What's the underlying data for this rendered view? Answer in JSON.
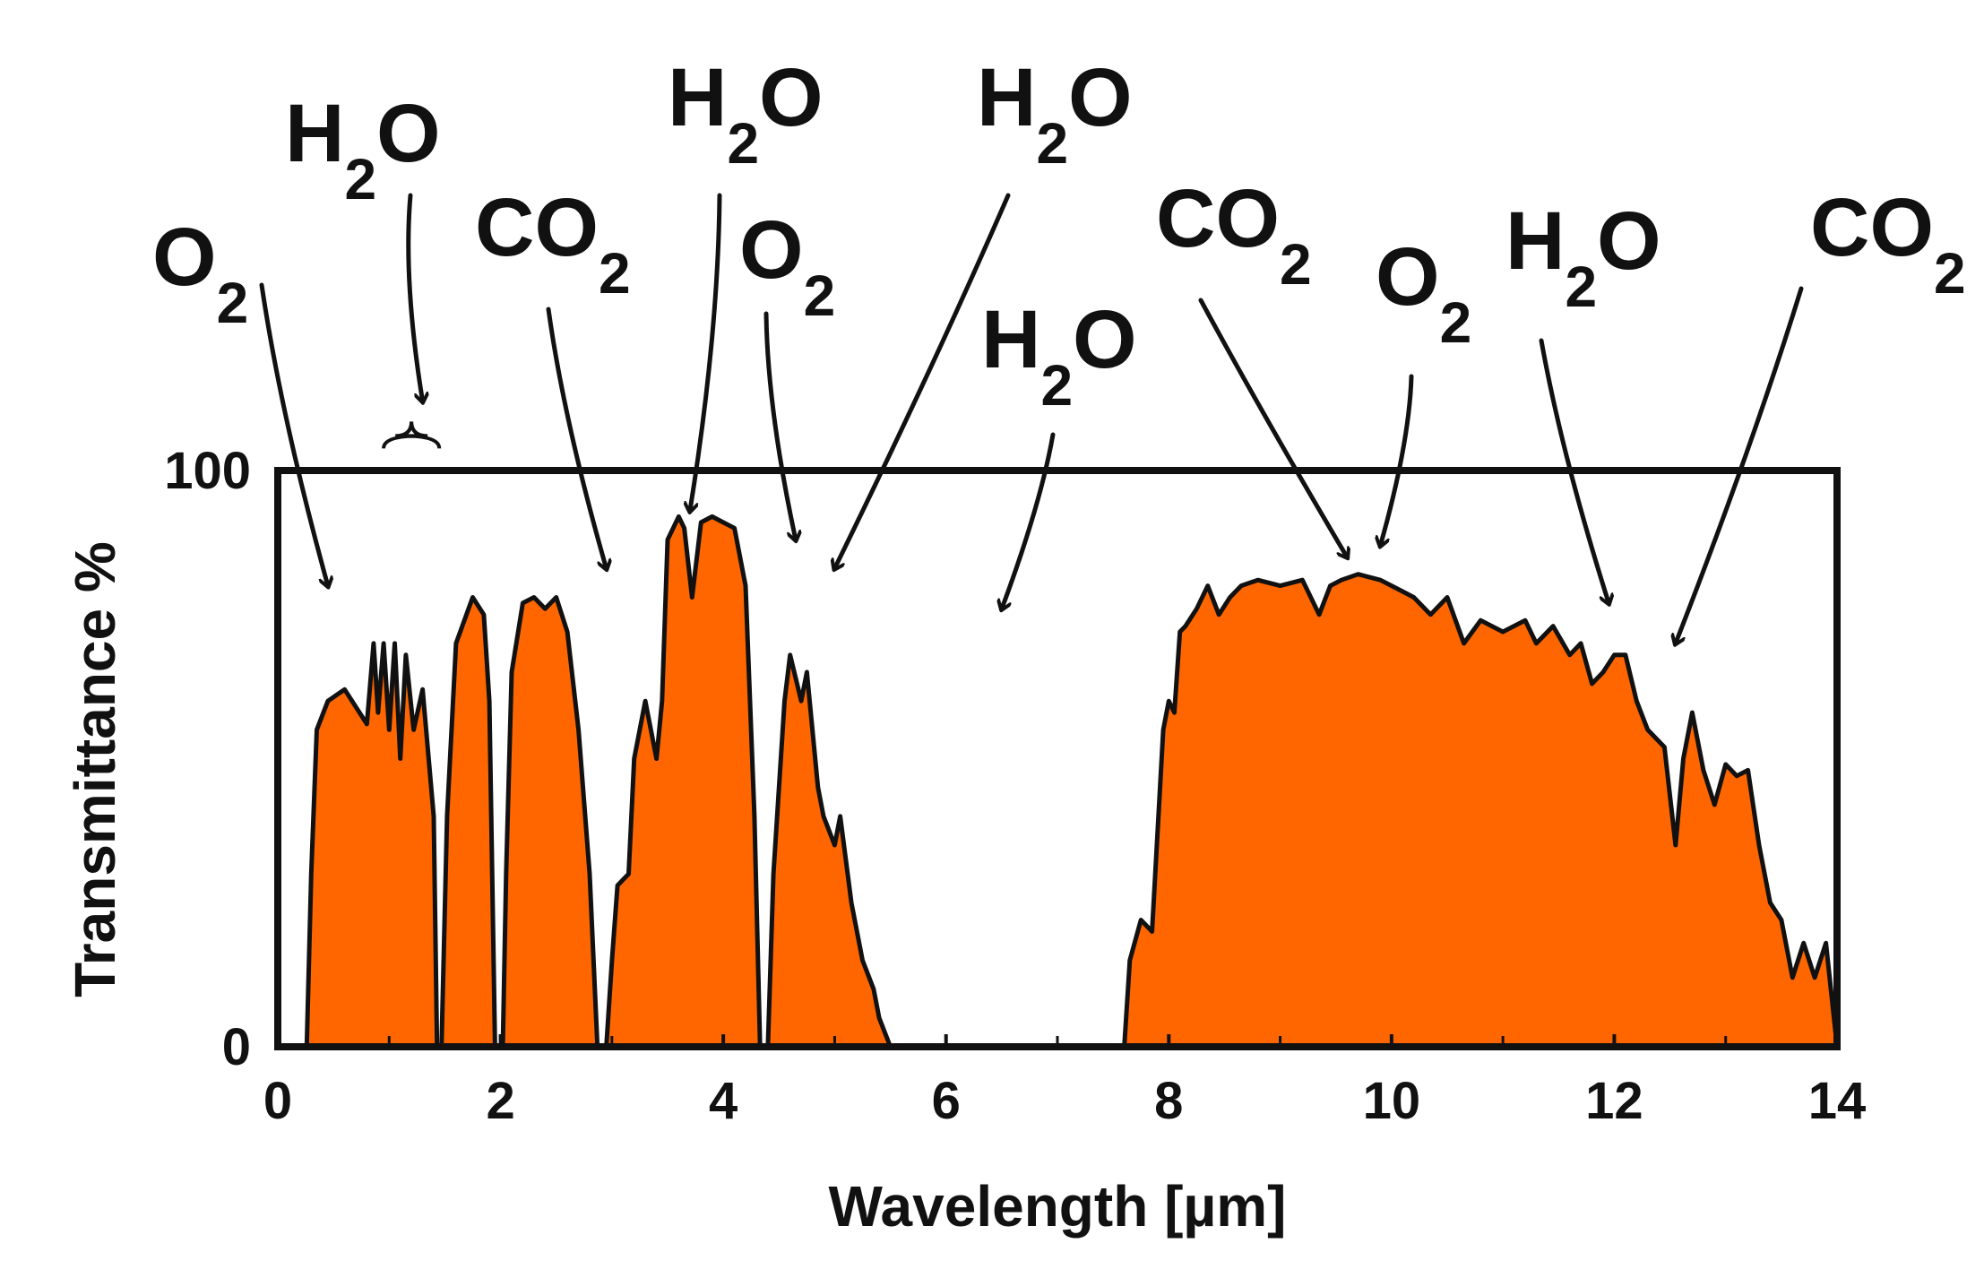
{
  "chart_data": {
    "type": "area",
    "xlabel": "Wavelength  [µm]",
    "ylabel": "Transmittance %",
    "xlim": [
      0,
      14
    ],
    "ylim": [
      0,
      100
    ],
    "x_ticks": [
      "0",
      "2",
      "4",
      "6",
      "8",
      "10",
      "12",
      "14"
    ],
    "y_ticks": [
      "0",
      "100"
    ],
    "fill_color": "#ff6600",
    "outline_color": "#111111",
    "grid": false,
    "bands": [
      {
        "x": [
          0.26,
          0.3,
          0.35,
          0.45,
          0.6,
          0.8,
          0.86,
          0.9,
          0.95,
          1.0,
          1.05,
          1.1,
          1.15,
          1.22,
          1.3,
          1.4,
          1.43
        ],
        "y": [
          0,
          30,
          55,
          60,
          62,
          56,
          70,
          58,
          70,
          55,
          70,
          50,
          68,
          55,
          62,
          40,
          0
        ]
      },
      {
        "x": [
          1.47,
          1.52,
          1.6,
          1.75,
          1.85,
          1.9,
          1.95
        ],
        "y": [
          0,
          40,
          70,
          78,
          75,
          60,
          0
        ]
      },
      {
        "x": [
          2.02,
          2.05,
          2.1,
          2.2,
          2.3,
          2.4,
          2.5,
          2.6,
          2.7,
          2.8,
          2.87
        ],
        "y": [
          0,
          30,
          65,
          77,
          78,
          76,
          78,
          72,
          55,
          30,
          0
        ]
      },
      {
        "x": [
          2.95,
          3.0,
          3.05,
          3.15,
          3.2,
          3.3,
          3.4,
          3.45,
          3.5,
          3.55,
          3.6,
          3.65,
          3.72,
          3.8,
          3.9,
          4.0,
          4.1,
          4.2,
          4.28,
          4.33
        ],
        "y": [
          0,
          15,
          28,
          30,
          50,
          60,
          50,
          60,
          88,
          90,
          92,
          90,
          78,
          91,
          92,
          91,
          90,
          80,
          40,
          0
        ]
      },
      {
        "x": [
          4.4,
          4.45,
          4.55,
          4.6,
          4.7,
          4.75,
          4.85,
          4.9,
          5.0,
          5.05,
          5.15,
          5.25,
          5.35,
          5.4,
          5.5
        ],
        "y": [
          0,
          30,
          60,
          68,
          60,
          65,
          45,
          40,
          35,
          40,
          25,
          15,
          10,
          5,
          0
        ]
      },
      {
        "x": [
          7.6,
          7.65,
          7.75,
          7.85,
          7.95,
          8.0,
          8.05,
          8.1,
          8.15,
          8.25,
          8.35,
          8.45,
          8.55,
          8.65,
          8.8,
          9.0,
          9.2,
          9.35,
          9.45,
          9.55,
          9.7,
          9.9,
          10.0,
          10.1,
          10.2,
          10.35,
          10.5,
          10.65,
          10.8,
          11.0,
          11.2,
          11.3,
          11.45,
          11.6,
          11.7,
          11.8,
          11.9,
          12.0,
          12.1,
          12.2,
          12.3,
          12.45,
          12.55,
          12.62,
          12.7,
          12.8,
          12.9,
          13.0,
          13.1,
          13.2,
          13.3,
          13.4,
          13.5,
          13.6,
          13.7,
          13.8,
          13.9,
          14.0
        ],
        "y": [
          0,
          15,
          22,
          20,
          55,
          60,
          58,
          72,
          73,
          76,
          80,
          75,
          78,
          80,
          81,
          80,
          81,
          75,
          80,
          81,
          82,
          81,
          80,
          79,
          78,
          75,
          78,
          70,
          74,
          72,
          74,
          70,
          73,
          68,
          70,
          63,
          65,
          68,
          68,
          60,
          55,
          52,
          35,
          50,
          58,
          48,
          42,
          49,
          47,
          48,
          35,
          25,
          22,
          12,
          18,
          12,
          18,
          0
        ]
      }
    ],
    "annotations": [
      {
        "name": "O2",
        "base": "O",
        "sub": "2",
        "target_x": 0.45,
        "target_y": 80
      },
      {
        "name": "H2O",
        "base": "H",
        "sub": "2",
        "tail": "O",
        "target_x": 1.3,
        "target_y": 112
      },
      {
        "name": "CO2",
        "base": "CO",
        "sub": "2",
        "target_x": 2.95,
        "target_y": 83
      },
      {
        "name": "H2O",
        "base": "H",
        "sub": "2",
        "tail": "O",
        "target_x": 3.7,
        "target_y": 93
      },
      {
        "name": "O2",
        "base": "O",
        "sub": "2",
        "target_x": 4.65,
        "target_y": 88
      },
      {
        "name": "H2O",
        "base": "H",
        "sub": "2",
        "tail": "O",
        "target_x": 5.0,
        "target_y": 83
      },
      {
        "name": "H2O",
        "base": "H",
        "sub": "2",
        "tail": "O",
        "target_x": 6.5,
        "target_y": 76
      },
      {
        "name": "CO2",
        "base": "CO",
        "sub": "2",
        "target_x": 9.6,
        "target_y": 85
      },
      {
        "name": "O2",
        "base": "O",
        "sub": "2",
        "target_x": 9.9,
        "target_y": 87
      },
      {
        "name": "H2O",
        "base": "H",
        "sub": "2",
        "tail": "O",
        "target_x": 11.95,
        "target_y": 77
      },
      {
        "name": "CO2",
        "base": "CO",
        "sub": "2",
        "target_x": 12.55,
        "target_y": 70
      }
    ]
  }
}
